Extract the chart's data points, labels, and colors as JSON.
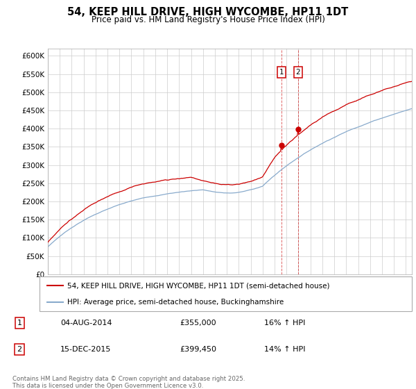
{
  "title": "54, KEEP HILL DRIVE, HIGH WYCOMBE, HP11 1DT",
  "subtitle": "Price paid vs. HM Land Registry's House Price Index (HPI)",
  "ylabel_ticks": [
    "£0",
    "£50K",
    "£100K",
    "£150K",
    "£200K",
    "£250K",
    "£300K",
    "£350K",
    "£400K",
    "£450K",
    "£500K",
    "£550K",
    "£600K"
  ],
  "ytick_values": [
    0,
    50000,
    100000,
    150000,
    200000,
    250000,
    300000,
    350000,
    400000,
    450000,
    500000,
    550000,
    600000
  ],
  "ylim": [
    0,
    620000
  ],
  "legend_label_red": "54, KEEP HILL DRIVE, HIGH WYCOMBE, HP11 1DT (semi-detached house)",
  "legend_label_blue": "HPI: Average price, semi-detached house, Buckinghamshire",
  "transaction1_date": "04-AUG-2014",
  "transaction1_price": "£355,000",
  "transaction1_hpi": "16% ↑ HPI",
  "transaction2_date": "15-DEC-2015",
  "transaction2_price": "£399,450",
  "transaction2_hpi": "14% ↑ HPI",
  "copyright_text": "Contains HM Land Registry data © Crown copyright and database right 2025.\nThis data is licensed under the Open Government Licence v3.0.",
  "red_color": "#cc0000",
  "blue_color": "#88aacc",
  "marker1_x": 2014.58,
  "marker1_y": 355000,
  "marker2_x": 2015.95,
  "marker2_y": 399450,
  "vline1_x": 2014.58,
  "vline2_x": 2015.95,
  "xlim_start": 1995,
  "xlim_end": 2025.5
}
